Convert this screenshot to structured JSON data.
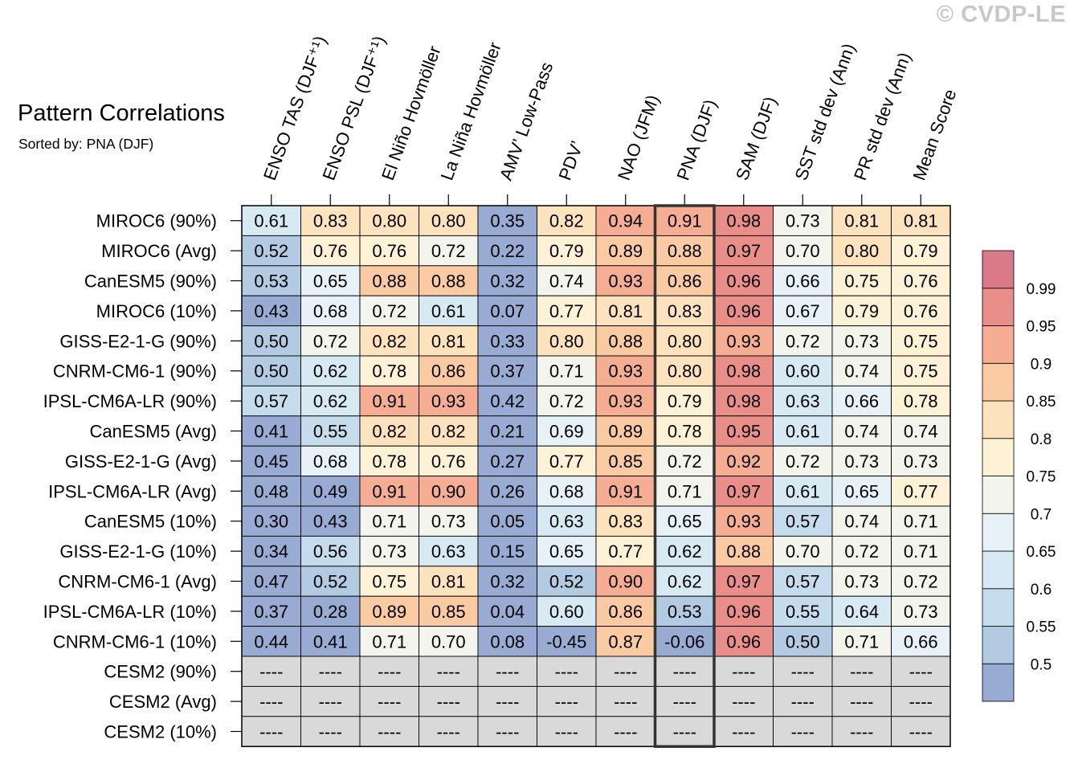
{
  "watermark": "© CVDP-LE",
  "title": "Pattern Correlations",
  "subtitle": "Sorted by: PNA (DJF)",
  "chart_data": {
    "type": "heatmap",
    "columns": [
      "ENSO TAS (DJF⁺¹)",
      "ENSO PSL (DJF⁺¹)",
      "El Niño Hovmöller",
      "La Niña Hovmöller",
      "AMV’ Low-Pass",
      "PDV’",
      "NAO (JFM)",
      "PNA (DJF)",
      "SAM (DJF)",
      "SST std dev (Ann)",
      "PR std dev (Ann)",
      "Mean Score"
    ],
    "highlighted_column": "PNA (DJF)",
    "rows": [
      "MIROC6 (90%)",
      "MIROC6 (Avg)",
      "CanESM5 (90%)",
      "MIROC6 (10%)",
      "GISS-E2-1-G (90%)",
      "CNRM-CM6-1 (90%)",
      "IPSL-CM6A-LR (90%)",
      "CanESM5 (Avg)",
      "GISS-E2-1-G (Avg)",
      "IPSL-CM6A-LR (Avg)",
      "CanESM5 (10%)",
      "GISS-E2-1-G (10%)",
      "CNRM-CM6-1 (Avg)",
      "IPSL-CM6A-LR (10%)",
      "CNRM-CM6-1 (10%)",
      "CESM2 (90%)",
      "CESM2 (Avg)",
      "CESM2 (10%)"
    ],
    "values": [
      [
        "0.61",
        "0.83",
        "0.80",
        "0.80",
        "0.35",
        "0.82",
        "0.94",
        "0.91",
        "0.98",
        "0.73",
        "0.81",
        "0.81"
      ],
      [
        "0.52",
        "0.76",
        "0.76",
        "0.72",
        "0.22",
        "0.79",
        "0.89",
        "0.88",
        "0.97",
        "0.70",
        "0.80",
        "0.79"
      ],
      [
        "0.53",
        "0.65",
        "0.88",
        "0.88",
        "0.32",
        "0.74",
        "0.93",
        "0.86",
        "0.96",
        "0.66",
        "0.75",
        "0.76"
      ],
      [
        "0.43",
        "0.68",
        "0.72",
        "0.61",
        "0.07",
        "0.77",
        "0.81",
        "0.83",
        "0.96",
        "0.67",
        "0.79",
        "0.76"
      ],
      [
        "0.50",
        "0.72",
        "0.82",
        "0.81",
        "0.33",
        "0.80",
        "0.88",
        "0.80",
        "0.93",
        "0.72",
        "0.73",
        "0.75"
      ],
      [
        "0.50",
        "0.62",
        "0.78",
        "0.86",
        "0.37",
        "0.71",
        "0.93",
        "0.80",
        "0.98",
        "0.60",
        "0.74",
        "0.75"
      ],
      [
        "0.57",
        "0.62",
        "0.91",
        "0.93",
        "0.42",
        "0.72",
        "0.93",
        "0.79",
        "0.98",
        "0.63",
        "0.66",
        "0.78"
      ],
      [
        "0.41",
        "0.55",
        "0.82",
        "0.82",
        "0.21",
        "0.69",
        "0.89",
        "0.78",
        "0.95",
        "0.61",
        "0.74",
        "0.74"
      ],
      [
        "0.45",
        "0.68",
        "0.78",
        "0.76",
        "0.27",
        "0.77",
        "0.85",
        "0.72",
        "0.92",
        "0.72",
        "0.73",
        "0.73"
      ],
      [
        "0.48",
        "0.49",
        "0.91",
        "0.90",
        "0.26",
        "0.68",
        "0.91",
        "0.71",
        "0.97",
        "0.61",
        "0.65",
        "0.77"
      ],
      [
        "0.30",
        "0.43",
        "0.71",
        "0.73",
        "0.05",
        "0.63",
        "0.83",
        "0.65",
        "0.93",
        "0.57",
        "0.74",
        "0.71"
      ],
      [
        "0.34",
        "0.56",
        "0.73",
        "0.63",
        "0.15",
        "0.65",
        "0.77",
        "0.62",
        "0.88",
        "0.70",
        "0.72",
        "0.71"
      ],
      [
        "0.47",
        "0.52",
        "0.75",
        "0.81",
        "0.32",
        "0.52",
        "0.90",
        "0.62",
        "0.97",
        "0.57",
        "0.73",
        "0.72"
      ],
      [
        "0.37",
        "0.28",
        "0.89",
        "0.85",
        "0.04",
        "0.60",
        "0.86",
        "0.53",
        "0.96",
        "0.55",
        "0.64",
        "0.73"
      ],
      [
        "0.44",
        "0.41",
        "0.71",
        "0.70",
        "0.08",
        "-0.45",
        "0.87",
        "-0.06",
        "0.96",
        "0.50",
        "0.71",
        "0.66"
      ],
      [
        "----",
        "----",
        "----",
        "----",
        "----",
        "----",
        "----",
        "----",
        "----",
        "----",
        "----",
        "----"
      ],
      [
        "----",
        "----",
        "----",
        "----",
        "----",
        "----",
        "----",
        "----",
        "----",
        "----",
        "----",
        "----"
      ],
      [
        "----",
        "----",
        "----",
        "----",
        "----",
        "----",
        "----",
        "----",
        "----",
        "----",
        "----",
        "----"
      ]
    ],
    "missing_label": "----",
    "missing_color": "#d9d9d9",
    "colorbar": {
      "levels": [
        0.5,
        0.55,
        0.6,
        0.65,
        0.7,
        0.75,
        0.8,
        0.85,
        0.9,
        0.95,
        0.99
      ],
      "labels": [
        "0.5",
        "0.55",
        "0.6",
        "0.65",
        "0.7",
        "0.75",
        "0.8",
        "0.85",
        "0.9",
        "0.95",
        "0.99"
      ],
      "colors": [
        "#98abd3",
        "#b2cbe3",
        "#c5dced",
        "#d7e9f3",
        "#e6f2f7",
        "#f3f4eb",
        "#fdf1d6",
        "#fde3bd",
        "#facaa3",
        "#f5ad93",
        "#ea8e8a",
        "#d9798a"
      ]
    }
  }
}
